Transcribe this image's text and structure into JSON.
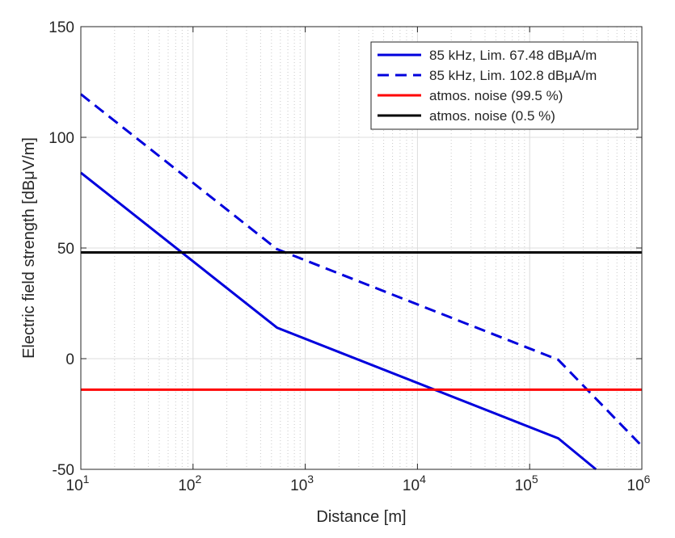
{
  "chart_data": {
    "type": "line",
    "title": "",
    "xlabel": "Distance [m]",
    "ylabel": "Electric field strength [dBμV/m]",
    "xscale": "log",
    "xlim": [
      10,
      1000000
    ],
    "ylim": [
      -50,
      150
    ],
    "x_tick_labels": [
      {
        "base": "10",
        "exp": "1"
      },
      {
        "base": "10",
        "exp": "2"
      },
      {
        "base": "10",
        "exp": "3"
      },
      {
        "base": "10",
        "exp": "4"
      },
      {
        "base": "10",
        "exp": "5"
      },
      {
        "base": "10",
        "exp": "6"
      }
    ],
    "y_ticks": [
      -50,
      0,
      50,
      100,
      150
    ],
    "y_tick_labels": [
      "-50",
      "0",
      "50",
      "100",
      "150"
    ],
    "grid": true,
    "legend_position": "top-right",
    "series": [
      {
        "name": "85 kHz, Lim. 67.48 dBμA/m",
        "color": "#0000dd",
        "style": "solid",
        "x": [
          10,
          560,
          180000,
          390000
        ],
        "y": [
          84,
          14,
          -36,
          -50
        ]
      },
      {
        "name": "85 kHz, Lim. 102.8 dBμA/m",
        "color": "#0000dd",
        "style": "dashed",
        "x": [
          10,
          560,
          180000,
          1000000
        ],
        "y": [
          119.5,
          49.5,
          -0.5,
          -39.5
        ]
      },
      {
        "name": "atmos. noise (99.5 %)",
        "color": "#ff0000",
        "style": "solid",
        "x": [
          10,
          1000000
        ],
        "y": [
          -14,
          -14
        ]
      },
      {
        "name": "atmos. noise (0.5 %)",
        "color": "#000000",
        "style": "solid",
        "x": [
          10,
          1000000
        ],
        "y": [
          48,
          48
        ]
      }
    ]
  }
}
